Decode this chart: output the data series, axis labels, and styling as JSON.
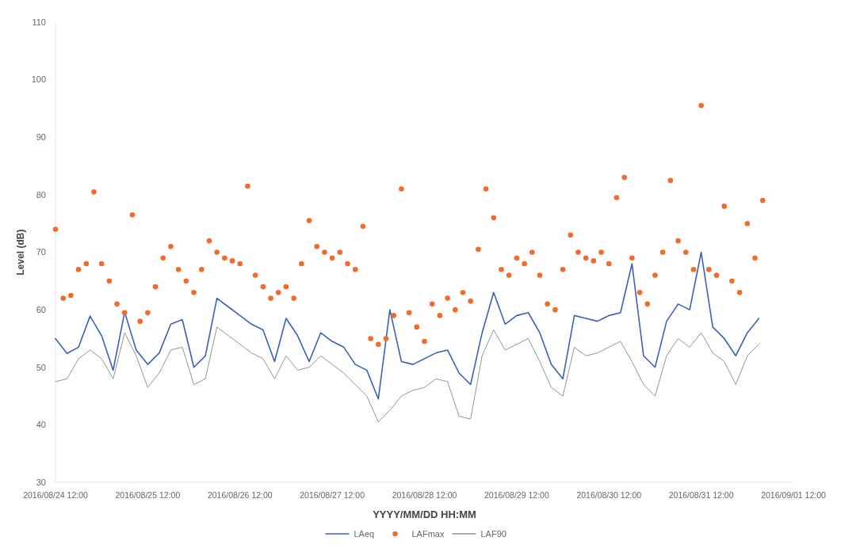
{
  "chart_data": {
    "type": "line",
    "xlabel": "YYYY/MM/DD HH:MM",
    "ylabel": "Level (dB)",
    "xlim": [
      "2016-08-24T12:00",
      "2016-09-01T12:00"
    ],
    "xticks": [
      {
        "value": "2016-08-24T12:00",
        "label": "2016/08/24 12:00"
      },
      {
        "value": "2016-08-25T12:00",
        "label": "2016/08/25 12:00"
      },
      {
        "value": "2016-08-26T12:00",
        "label": "2016/08/26 12:00"
      },
      {
        "value": "2016-08-27T12:00",
        "label": "2016/08/27 12:00"
      },
      {
        "value": "2016-08-28T12:00",
        "label": "2016/08/28 12:00"
      },
      {
        "value": "2016-08-29T12:00",
        "label": "2016/08/29 12:00"
      },
      {
        "value": "2016-08-30T12:00",
        "label": "2016/08/30 12:00"
      },
      {
        "value": "2016-08-31T12:00",
        "label": "2016/08/31 12:00"
      },
      {
        "value": "2016-09-01T12:00",
        "label": "2016/09/01 12:00"
      }
    ],
    "ylim": [
      30,
      110
    ],
    "yticks": [
      30,
      40,
      50,
      60,
      70,
      80,
      90,
      100,
      110
    ],
    "legend": "bottom",
    "grid": false,
    "x": [
      "2016-08-24T12:00",
      "2016-08-24T15:00",
      "2016-08-24T18:00",
      "2016-08-24T21:00",
      "2016-08-25T00:00",
      "2016-08-25T03:00",
      "2016-08-25T06:00",
      "2016-08-25T09:00",
      "2016-08-25T12:00",
      "2016-08-25T15:00",
      "2016-08-25T18:00",
      "2016-08-25T21:00",
      "2016-08-26T00:00",
      "2016-08-26T03:00",
      "2016-08-26T06:00",
      "2016-08-26T09:00",
      "2016-08-26T12:00",
      "2016-08-26T15:00",
      "2016-08-26T18:00",
      "2016-08-26T21:00",
      "2016-08-27T00:00",
      "2016-08-27T03:00",
      "2016-08-27T06:00",
      "2016-08-27T09:00",
      "2016-08-27T12:00",
      "2016-08-27T15:00",
      "2016-08-27T18:00",
      "2016-08-27T21:00",
      "2016-08-28T00:00",
      "2016-08-28T03:00",
      "2016-08-28T06:00",
      "2016-08-28T09:00",
      "2016-08-28T12:00",
      "2016-08-28T15:00",
      "2016-08-28T18:00",
      "2016-08-28T21:00",
      "2016-08-29T00:00",
      "2016-08-29T03:00",
      "2016-08-29T06:00",
      "2016-08-29T09:00",
      "2016-08-29T12:00",
      "2016-08-29T15:00",
      "2016-08-29T18:00",
      "2016-08-29T21:00",
      "2016-08-30T00:00",
      "2016-08-30T03:00",
      "2016-08-30T06:00",
      "2016-08-30T09:00",
      "2016-08-30T12:00",
      "2016-08-30T15:00",
      "2016-08-30T18:00",
      "2016-08-30T21:00",
      "2016-08-31T00:00",
      "2016-08-31T03:00",
      "2016-08-31T06:00",
      "2016-08-31T09:00",
      "2016-08-31T12:00",
      "2016-08-31T15:00",
      "2016-08-31T18:00",
      "2016-08-31T21:00",
      "2016-09-01T00:00",
      "2016-09-01T03:00"
    ],
    "series": [
      {
        "name": "LAeq",
        "color": "#3a5fbf",
        "marker": "none",
        "values": [
          55,
          52.4,
          53.5,
          58.9,
          55.5,
          49.5,
          59.6,
          53,
          50.5,
          52.5,
          57.5,
          58.3,
          50,
          52,
          62,
          60.5,
          59,
          57.5,
          56.5,
          51,
          58.5,
          55.5,
          51,
          56,
          54.5,
          53.5,
          50.5,
          49.5,
          44.5,
          60,
          51,
          50.5,
          51.5,
          52.5,
          53,
          49,
          47,
          56,
          63,
          57.5,
          59,
          59.5,
          56,
          50.5,
          48,
          59,
          58.5,
          58,
          59,
          59.5,
          68,
          52,
          50,
          58,
          61,
          60,
          70,
          57,
          55,
          52,
          56,
          58.5
        ]
      },
      {
        "name": "LAFmax",
        "type": "scatter",
        "color": "#f26b2a",
        "marker": "circle",
        "x": [
          "2016-08-24T12:00",
          "2016-08-24T14:00",
          "2016-08-24T16:00",
          "2016-08-24T18:00",
          "2016-08-24T20:00",
          "2016-08-24T22:00",
          "2016-08-25T00:00",
          "2016-08-25T02:00",
          "2016-08-25T04:00",
          "2016-08-25T06:00",
          "2016-08-25T08:00",
          "2016-08-25T10:00",
          "2016-08-25T12:00",
          "2016-08-25T14:00",
          "2016-08-25T16:00",
          "2016-08-25T18:00",
          "2016-08-25T20:00",
          "2016-08-25T22:00",
          "2016-08-26T00:00",
          "2016-08-26T02:00",
          "2016-08-26T04:00",
          "2016-08-26T06:00",
          "2016-08-26T08:00",
          "2016-08-26T10:00",
          "2016-08-26T12:00",
          "2016-08-26T14:00",
          "2016-08-26T16:00",
          "2016-08-26T18:00",
          "2016-08-26T20:00",
          "2016-08-26T22:00",
          "2016-08-27T00:00",
          "2016-08-27T02:00",
          "2016-08-27T04:00",
          "2016-08-27T06:00",
          "2016-08-27T08:00",
          "2016-08-27T10:00",
          "2016-08-27T12:00",
          "2016-08-27T14:00",
          "2016-08-27T16:00",
          "2016-08-27T18:00",
          "2016-08-27T20:00",
          "2016-08-27T22:00",
          "2016-08-28T00:00",
          "2016-08-28T02:00",
          "2016-08-28T04:00",
          "2016-08-28T06:00",
          "2016-08-28T08:00",
          "2016-08-28T10:00",
          "2016-08-28T12:00",
          "2016-08-28T14:00",
          "2016-08-28T16:00",
          "2016-08-28T18:00",
          "2016-08-28T20:00",
          "2016-08-28T22:00",
          "2016-08-29T00:00",
          "2016-08-29T02:00",
          "2016-08-29T04:00",
          "2016-08-29T06:00",
          "2016-08-29T08:00",
          "2016-08-29T10:00",
          "2016-08-29T12:00",
          "2016-08-29T14:00",
          "2016-08-29T16:00",
          "2016-08-29T18:00",
          "2016-08-29T20:00",
          "2016-08-29T22:00",
          "2016-08-30T00:00",
          "2016-08-30T02:00",
          "2016-08-30T04:00",
          "2016-08-30T06:00",
          "2016-08-30T08:00",
          "2016-08-30T10:00",
          "2016-08-30T12:00",
          "2016-08-30T14:00",
          "2016-08-30T16:00",
          "2016-08-30T18:00",
          "2016-08-30T20:00",
          "2016-08-30T22:00",
          "2016-08-31T00:00",
          "2016-08-31T02:00",
          "2016-08-31T04:00",
          "2016-08-31T06:00",
          "2016-08-31T08:00",
          "2016-08-31T10:00",
          "2016-08-31T12:00",
          "2016-08-31T14:00",
          "2016-08-31T16:00",
          "2016-08-31T18:00",
          "2016-08-31T20:00",
          "2016-08-31T22:00",
          "2016-09-01T00:00",
          "2016-09-01T02:00",
          "2016-09-01T04:00"
        ],
        "values": [
          74,
          62,
          62.5,
          67,
          68,
          80.5,
          68,
          65,
          61,
          59.5,
          76.5,
          58,
          59.5,
          64,
          69,
          71,
          67,
          65,
          63,
          67,
          72,
          70,
          69,
          68.5,
          68,
          81.5,
          66,
          64,
          62,
          63,
          64,
          62,
          68,
          75.5,
          71,
          70,
          69,
          70,
          68,
          67,
          74.5,
          55,
          54,
          55,
          59,
          81,
          59.5,
          57,
          54.5,
          61,
          59,
          62,
          60,
          63,
          61.5,
          70.5,
          81,
          76,
          67,
          66,
          69,
          68,
          70,
          66,
          61,
          60,
          67,
          73,
          70,
          69,
          68.5,
          70,
          68,
          79.5,
          83,
          69,
          63,
          61,
          66,
          70,
          82.5,
          72,
          70,
          67,
          95.5,
          67,
          66,
          78,
          65,
          63,
          75,
          69,
          79
        ]
      },
      {
        "name": "LAF90",
        "color": "#8a9a96",
        "marker": "none",
        "values": [
          47.5,
          48,
          51.5,
          53,
          51.5,
          48,
          56,
          52,
          46.5,
          49,
          53,
          53.5,
          47,
          48,
          57,
          55.5,
          54,
          52.5,
          51.5,
          48,
          52,
          49.5,
          50,
          52,
          50.5,
          49,
          47,
          45,
          40.5,
          42.5,
          45,
          46,
          46.5,
          48,
          47.5,
          41.5,
          41,
          52,
          56.5,
          53,
          54,
          55,
          51,
          46.5,
          45,
          53.5,
          52,
          52.5,
          53.5,
          54.5,
          51,
          47,
          45,
          52,
          55,
          53.5,
          56,
          52.5,
          51,
          47,
          52,
          54
        ]
      }
    ]
  }
}
